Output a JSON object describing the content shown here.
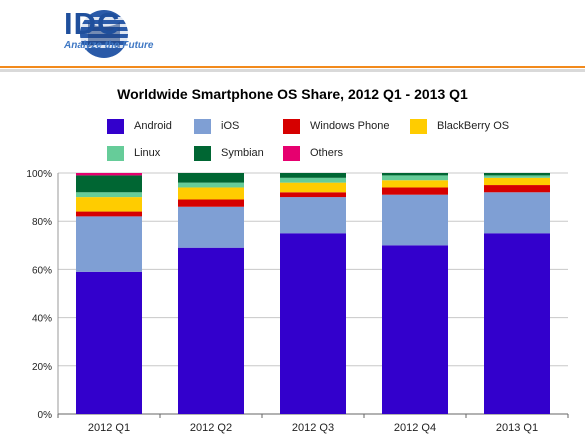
{
  "brand": {
    "name": "IDC",
    "tagline": "Analyze the Future"
  },
  "colors": {
    "accent_rule": "#f28a1c",
    "brand_blue": "#1f4f9c"
  },
  "chart_data": {
    "type": "bar",
    "stacked": true,
    "title": "Worldwide Smartphone OS Share, 2012 Q1 - 2013 Q1",
    "categories": [
      "2012 Q1",
      "2012 Q2",
      "2012 Q3",
      "2012 Q4",
      "2013 Q1"
    ],
    "ylim": [
      0,
      100
    ],
    "yticks": [
      "0%",
      "20%",
      "40%",
      "60%",
      "80%",
      "100%"
    ],
    "legend_position": "top",
    "series": [
      {
        "name": "Android",
        "color": "#3300cc",
        "values": [
          59,
          69,
          75,
          70,
          75
        ]
      },
      {
        "name": "iOS",
        "color": "#7f9fd4",
        "values": [
          23,
          17,
          15,
          21,
          17
        ]
      },
      {
        "name": "Windows Phone",
        "color": "#d60000",
        "values": [
          2,
          3,
          2,
          3,
          3
        ]
      },
      {
        "name": "BlackBerry OS",
        "color": "#ffcc00",
        "values": [
          6,
          5,
          4,
          3,
          3
        ]
      },
      {
        "name": "Linux",
        "color": "#66cc99",
        "values": [
          2,
          2,
          2,
          2,
          1
        ]
      },
      {
        "name": "Symbian",
        "color": "#006633",
        "values": [
          7,
          4,
          2,
          1,
          1
        ]
      },
      {
        "name": "Others",
        "color": "#e6006f",
        "values": [
          1,
          0,
          0,
          0,
          0
        ]
      }
    ]
  }
}
